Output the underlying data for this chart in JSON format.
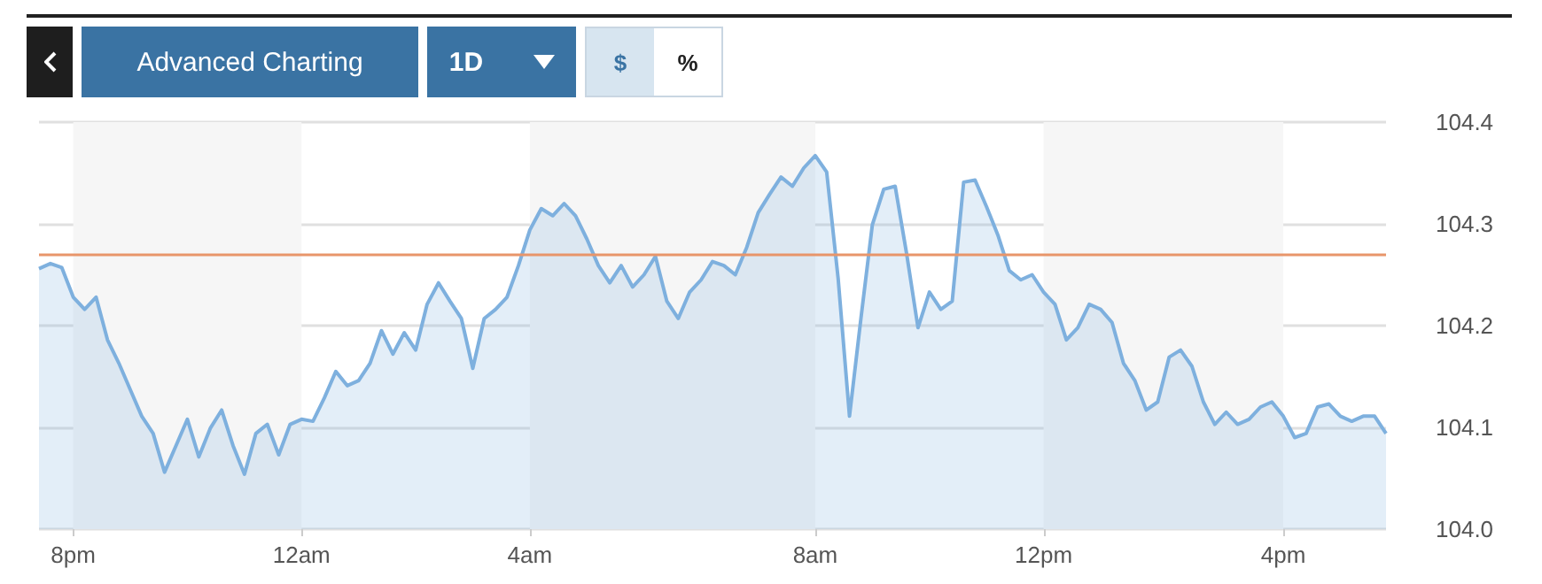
{
  "chart_data": {
    "type": "area",
    "annotations": [
      "Advanced Charting",
      "1D",
      "$",
      "%"
    ],
    "categories": [
      null,
      null,
      null,
      "8pm",
      null,
      null,
      null,
      null,
      null,
      null,
      null,
      null,
      null,
      null,
      null,
      null,
      null,
      null,
      null,
      null,
      null,
      null,
      null,
      "12am",
      null,
      null,
      null,
      null,
      null,
      null,
      null,
      null,
      null,
      null,
      null,
      null,
      null,
      null,
      null,
      null,
      null,
      null,
      null,
      "4am",
      null,
      null,
      null,
      null,
      null,
      null,
      null,
      null,
      null,
      null,
      null,
      null,
      null,
      null,
      null,
      null,
      null,
      null,
      null,
      null,
      null,
      null,
      null,
      null,
      "8am",
      null,
      null,
      null,
      null,
      null,
      null,
      null,
      null,
      null,
      null,
      null,
      null,
      null,
      null,
      null,
      null,
      null,
      null,
      null,
      "12pm",
      null,
      null,
      null,
      null,
      null,
      null,
      null,
      null,
      null,
      null,
      null,
      null,
      null,
      null,
      null,
      null,
      null,
      null,
      null,
      null,
      "4pm",
      null,
      null,
      null,
      null,
      null,
      null,
      null,
      null,
      null
    ],
    "series": [
      {
        "color": "#7eb0de",
        "values": [
          104.256,
          104.261,
          104.257,
          104.228,
          104.216,
          104.228,
          104.186,
          104.163,
          104.137,
          104.111,
          104.094,
          104.056,
          104.082,
          104.108,
          104.071,
          104.099,
          104.117,
          104.082,
          104.054,
          104.094,
          104.103,
          104.073,
          104.103,
          104.108,
          104.106,
          104.129,
          104.155,
          104.141,
          104.146,
          104.163,
          104.195,
          104.172,
          104.193,
          104.176,
          104.221,
          104.242,
          104.224,
          104.207,
          104.158,
          104.207,
          104.216,
          104.228,
          104.259,
          104.294,
          104.315,
          104.308,
          104.32,
          104.308,
          104.285,
          104.259,
          104.242,
          104.259,
          104.238,
          104.25,
          104.268,
          104.224,
          104.207,
          104.233,
          104.245,
          104.263,
          104.259,
          104.25,
          104.277,
          104.311,
          104.329,
          104.346,
          104.337,
          104.355,
          104.367,
          104.351,
          104.247,
          104.111,
          104.207,
          104.299,
          104.334,
          104.337,
          104.271,
          104.198,
          104.233,
          104.216,
          104.224,
          104.341,
          104.343,
          104.317,
          104.289,
          104.254,
          104.245,
          104.25,
          104.233,
          104.221,
          104.186,
          104.198,
          104.221,
          104.216,
          104.203,
          104.163,
          104.146,
          104.117,
          104.125,
          104.169,
          104.176,
          104.16,
          104.125,
          104.103,
          104.115,
          104.103,
          104.108,
          104.12,
          104.125,
          104.111,
          104.09,
          104.094,
          104.12,
          104.123,
          104.111,
          104.106,
          104.111,
          104.111,
          104.094
        ]
      }
    ],
    "ylim": [
      104.0,
      104.4
    ],
    "yticks": [
      {
        "value": 104.0,
        "label": "104.0"
      },
      104.1,
      104.2,
      104.3,
      104.4
    ],
    "grid": "y",
    "ref_lines": [
      {
        "axis": "y",
        "value": 104.27,
        "color": "#e8956a"
      }
    ],
    "bands": [
      {
        "axis": "x",
        "from": "8pm",
        "to": "12am",
        "color": "#f6f6f6"
      },
      {
        "axis": "x",
        "from": "4am",
        "to": "8am",
        "color": "#f6f6f6"
      },
      {
        "axis": "x",
        "from": "12pm",
        "to": "4pm",
        "color": "#f6f6f6"
      }
    ]
  }
}
